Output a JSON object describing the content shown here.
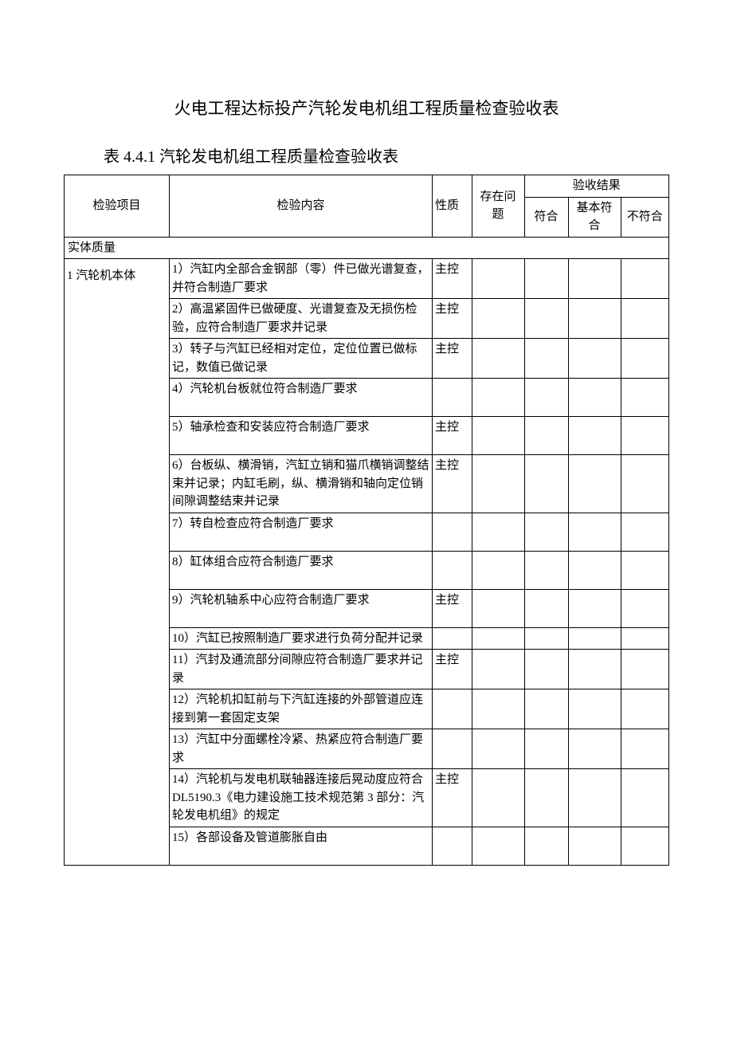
{
  "main_title": "火电工程达标投产汽轮发电机组工程质量检查验收表",
  "sub_title": "表 4.4.1 汽轮发电机组工程质量检查验收表",
  "headers": {
    "item": "检验项目",
    "content": "检验内容",
    "nature": "性质",
    "issue": "存在问题",
    "result": "验收结果",
    "pass": "符合",
    "basic": "基本符合",
    "fail": "不符合"
  },
  "section_label": "实体质量",
  "group_label": "1 汽轮机本体",
  "nature_main": "主控",
  "rows": [
    {
      "content": "1）汽缸内全部合金钢部（零）件已做光谱复查，并符合制造厂要求",
      "nature": "主控"
    },
    {
      "content": "2）高温紧固件已做硬度、光谱复查及无损伤检验，应符合制造厂要求并记录",
      "nature": "主控"
    },
    {
      "content": "3）转子与汽缸已经相对定位，定位位置已做标记，数值已做记录",
      "nature": "主控"
    },
    {
      "content": "4）汽轮机台板就位符合制造厂要求",
      "nature": ""
    },
    {
      "content": "5）轴承检查和安装应符合制造厂要求",
      "nature": "主控"
    },
    {
      "content": "6）台板纵、横滑销，汽缸立销和猫爪横销调整结束并记录；内缸毛刷，纵、横滑销和轴向定位销间隙调整结束并记录",
      "nature": "主控"
    },
    {
      "content": "7）转自检查应符合制造厂要求",
      "nature": ""
    },
    {
      "content": "8）缸体组合应符合制造厂要求",
      "nature": ""
    },
    {
      "content": "9）汽轮机轴系中心应符合制造厂要求",
      "nature": "主控"
    },
    {
      "content": "10）汽缸已按照制造厂要求进行负荷分配并记录",
      "nature": ""
    },
    {
      "content": "11）汽封及通流部分间隙应符合制造厂要求并记录",
      "nature": "主控"
    },
    {
      "content": "12）汽轮机扣缸前与下汽缸连接的外部管道应连接到第一套固定支架",
      "nature": ""
    },
    {
      "content": "13）汽缸中分面螺栓冷紧、热紧应符合制造厂要求",
      "nature": ""
    },
    {
      "content": "14）汽轮机与发电机联轴器连接后晃动度应符合 DL5190.3《电力建设施工技术规范第 3 部分：汽轮发电机组》的规定",
      "nature": "主控"
    },
    {
      "content": "15）各部设备及管道膨胀自由",
      "nature": ""
    }
  ],
  "style": {
    "background": "#ffffff",
    "border_color": "#000000",
    "text_color": "#000000",
    "title_fontsize": 21,
    "body_fontsize": 15,
    "font_family": "SimSun"
  }
}
